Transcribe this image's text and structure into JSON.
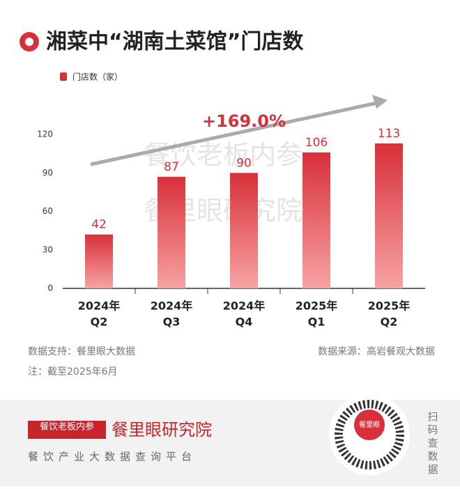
{
  "chart_data": {
    "type": "bar",
    "title": "湘菜中“湖南土菜馆”门店数",
    "categories": [
      [
        "2024年",
        "Q2"
      ],
      [
        "2024年",
        "Q3"
      ],
      [
        "2024年",
        "Q4"
      ],
      [
        "2025年",
        "Q1"
      ],
      [
        "2025年",
        "Q2"
      ]
    ],
    "series": [
      {
        "name": "门店数（家）",
        "color": "#d8303a",
        "values": [
          42,
          87,
          90,
          106,
          113
        ]
      }
    ],
    "ylim": [
      0,
      120
    ],
    "yticks": [
      0,
      30,
      60,
      90,
      120
    ],
    "annotation": "+169.0%",
    "watermarks": [
      "餐饮老板内参",
      "餐里眼研究院"
    ]
  },
  "footer": {
    "data_support": "数据支持：餐里眼大数据",
    "data_source": "数据来源：高岩餐观大数据",
    "note": "注：截至2025年6月",
    "brand_badge": "餐饮老板内参",
    "brand": "餐里眼研究院",
    "slogan": "餐饮产业大数据查询平台",
    "qr_hint": "扫码查数据",
    "qr_logo": "餐里眼"
  }
}
